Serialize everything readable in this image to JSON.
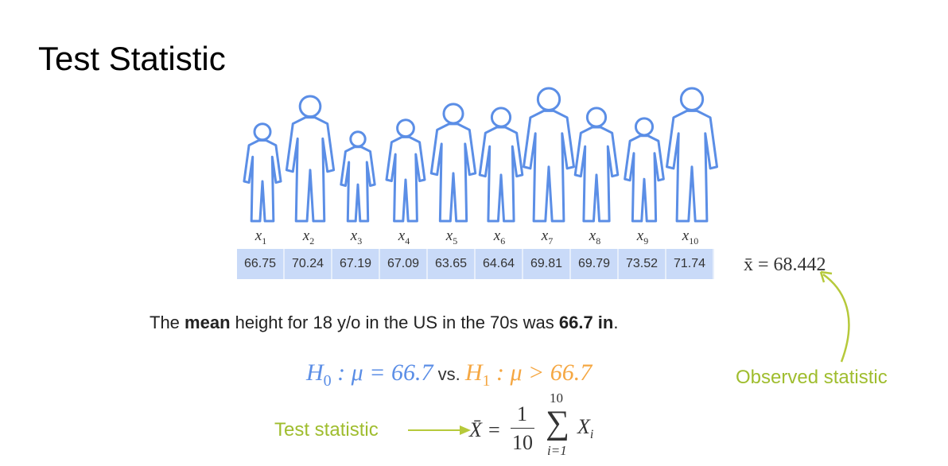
{
  "title": "Test Statistic",
  "labels": [
    "1",
    "2",
    "3",
    "4",
    "5",
    "6",
    "7",
    "8",
    "9",
    "10"
  ],
  "label_var": "x",
  "values": [
    "66.75",
    "70.24",
    "67.19",
    "67.09",
    "63.65",
    "64.64",
    "69.81",
    "69.79",
    "73.52",
    "71.74"
  ],
  "sample_mean": "x̄ = 68.442",
  "statement": {
    "pre": "The ",
    "bold1": "mean",
    "mid": "  height for 18 y/o in the US in the 70s was ",
    "bold2": "66.7 in",
    "post": "."
  },
  "hypotheses": {
    "h0": "H",
    "h0_sub": "0",
    "h0_rest": " : μ = 66.7",
    "vs": " vs. ",
    "h1": "H",
    "h1_sub": "1",
    "h1_rest": " : μ > 66.7"
  },
  "observed_label": "Observed statistic",
  "test_label": "Test statistic",
  "formula": {
    "lhs": "X̄ =",
    "num": "1",
    "den": "10",
    "sum_top": "10",
    "sigma": "∑",
    "sum_bottom": "i=1",
    "term": "X",
    "term_sub": "i"
  },
  "colors": {
    "blue": "#5b8ee6",
    "orange": "#f5a742",
    "green": "#9fbd2e",
    "cell": "#c9daf8"
  }
}
